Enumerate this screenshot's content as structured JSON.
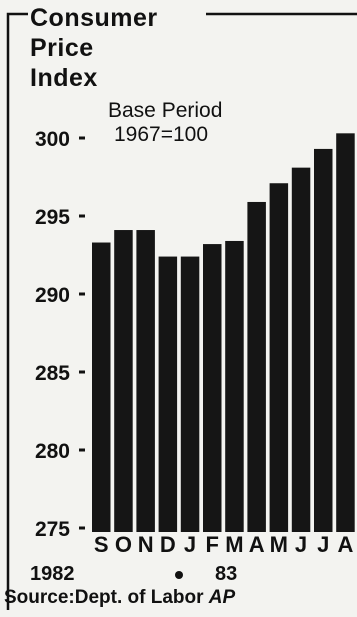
{
  "chart_data": {
    "type": "bar",
    "title_lines": [
      "Consumer",
      "Price",
      "Index"
    ],
    "base_period_lines": [
      "Base Period",
      "1967=100"
    ],
    "categories": [
      "S",
      "O",
      "N",
      "D",
      "J",
      "F",
      "M",
      "A",
      "M",
      "J",
      "J",
      "A"
    ],
    "values": [
      293.3,
      294.1,
      294.1,
      292.4,
      292.4,
      293.2,
      293.4,
      295.9,
      297.1,
      298.1,
      299.3,
      300.3
    ],
    "ylim": [
      275,
      300
    ],
    "yticks": [
      "300",
      "295",
      "290",
      "285",
      "280",
      "275"
    ],
    "year_labels": [
      "1982",
      "83"
    ],
    "source": "Source:Dept. of Labor",
    "credit": "AP",
    "bar_color": "#151515",
    "background": "#f3f3f0"
  }
}
